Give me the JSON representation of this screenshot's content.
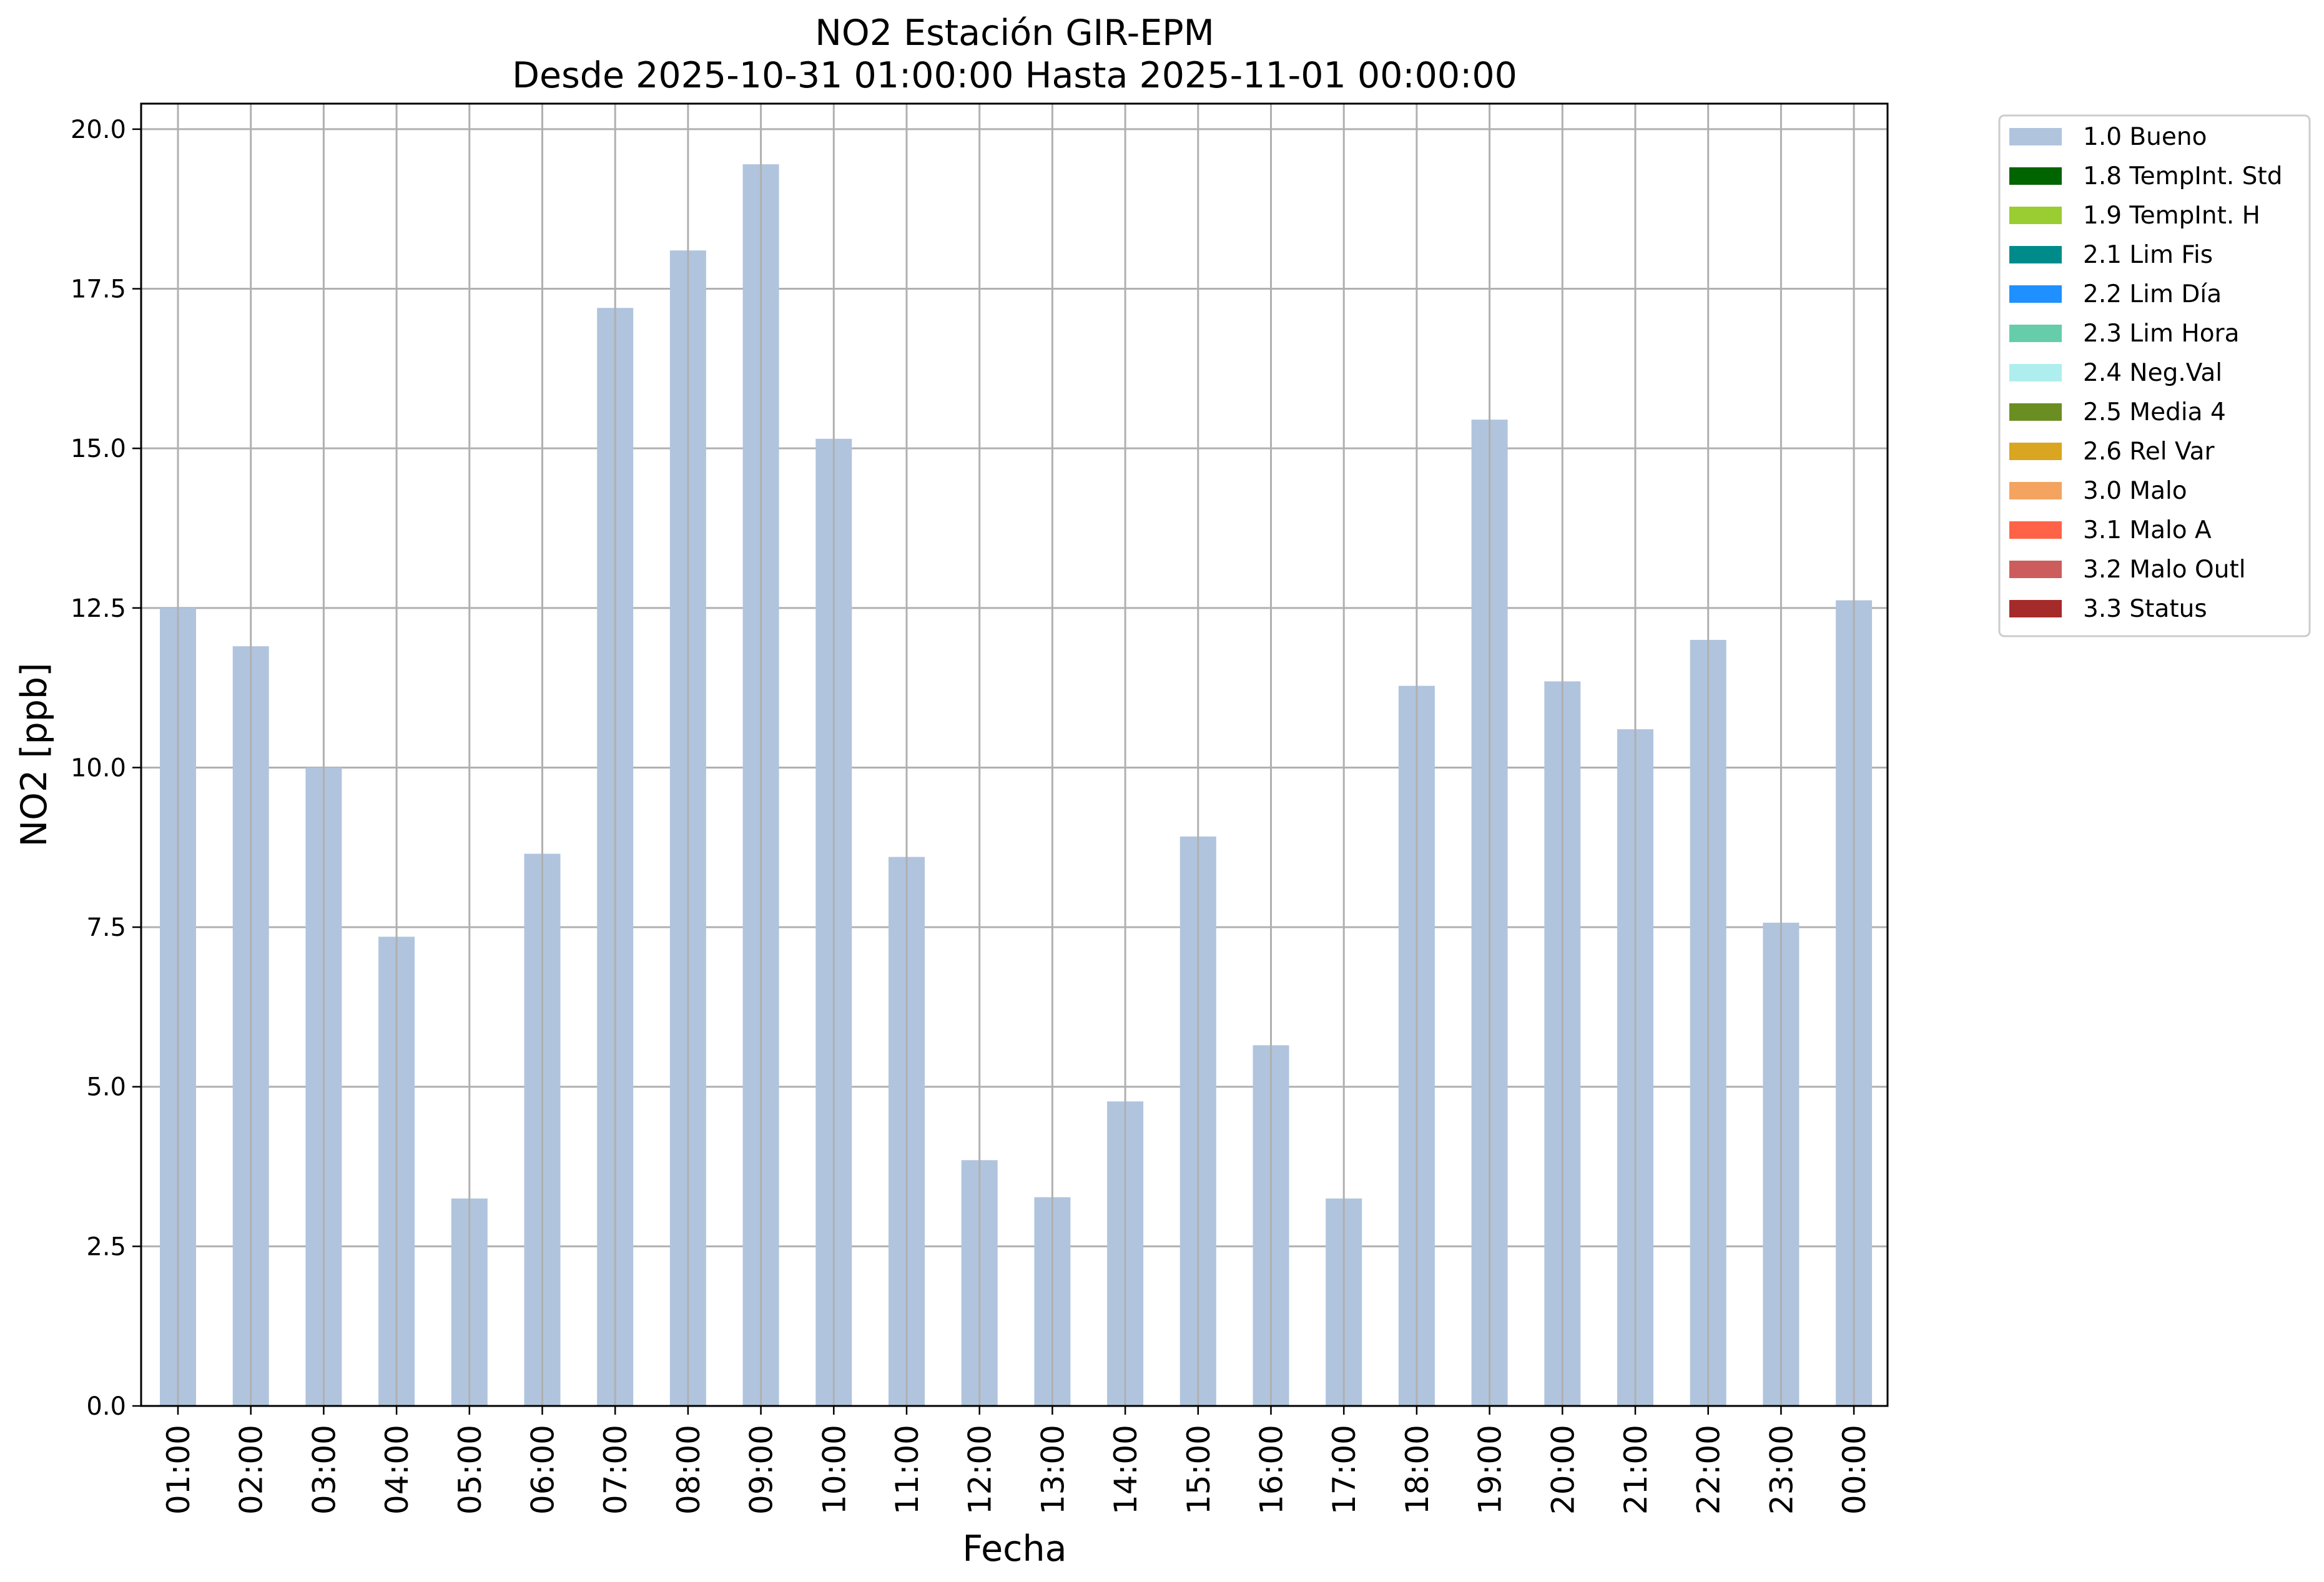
{
  "chart_data": {
    "type": "bar",
    "title": "NO2 Estación GIR-EPM",
    "subtitle": "Desde 2025-10-31 01:00:00 Hasta 2025-11-01 00:00:00",
    "xlabel": "Fecha",
    "ylabel": "NO2 [ppb]",
    "ylim": [
      0,
      20.4
    ],
    "yticks": [
      "0.0",
      "2.5",
      "5.0",
      "7.5",
      "10.0",
      "12.5",
      "15.0",
      "17.5",
      "20.0"
    ],
    "grid": true,
    "legend_position": "outside-top-right",
    "categories": [
      "01:00",
      "02:00",
      "03:00",
      "04:00",
      "05:00",
      "06:00",
      "07:00",
      "08:00",
      "09:00",
      "10:00",
      "11:00",
      "12:00",
      "13:00",
      "14:00",
      "15:00",
      "16:00",
      "17:00",
      "18:00",
      "19:00",
      "20:00",
      "21:00",
      "22:00",
      "23:00",
      "00:00"
    ],
    "series": [
      {
        "name": "1.0 Bueno",
        "color": "#b0c4de",
        "values": [
          12.5,
          11.9,
          10.0,
          7.35,
          3.25,
          8.65,
          17.2,
          18.1,
          19.45,
          15.15,
          8.6,
          3.85,
          3.27,
          4.77,
          8.92,
          5.65,
          3.25,
          11.28,
          15.45,
          11.35,
          10.6,
          12.0,
          7.57,
          12.62
        ]
      }
    ],
    "legend": [
      {
        "label": "1.0 Bueno",
        "color": "#b0c4de"
      },
      {
        "label": "1.8 TempInt. Std",
        "color": "#006400"
      },
      {
        "label": "1.9 TempInt. H",
        "color": "#9acd32"
      },
      {
        "label": "2.1 Lim Fis",
        "color": "#008b8b"
      },
      {
        "label": "2.2 Lim Día",
        "color": "#1e90ff"
      },
      {
        "label": "2.3 Lim Hora",
        "color": "#66cdaa"
      },
      {
        "label": "2.4 Neg.Val",
        "color": "#afeeee"
      },
      {
        "label": "2.5 Media 4",
        "color": "#6b8e23"
      },
      {
        "label": "2.6 Rel Var",
        "color": "#daa520"
      },
      {
        "label": "3.0 Malo",
        "color": "#f4a460"
      },
      {
        "label": "3.1 Malo A",
        "color": "#ff6347"
      },
      {
        "label": "3.2 Malo Outl",
        "color": "#cd5c5c"
      },
      {
        "label": "3.3 Status",
        "color": "#a52a2a"
      }
    ]
  }
}
